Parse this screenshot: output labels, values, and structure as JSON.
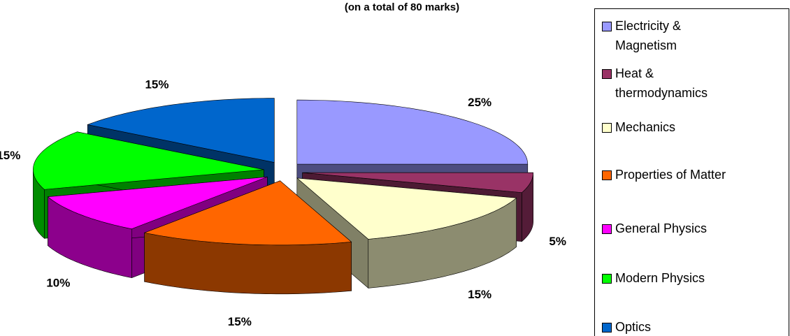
{
  "chart_data": {
    "type": "pie",
    "title": "(on a total of 80 marks)",
    "categories": [
      "Electricity & Magnetism",
      "Heat & thermodynamics",
      "Mechanics",
      "Properties of Matter",
      "General Physics",
      "Modern Physics",
      "Optics"
    ],
    "values": [
      25,
      5,
      15,
      15,
      10,
      15,
      15
    ],
    "value_labels": [
      "25%",
      "5%",
      "15%",
      "15%",
      "10%",
      "15%",
      "15%"
    ],
    "colors": [
      "#9999ff",
      "#993366",
      "#ffffcc",
      "#ff6600",
      "#ff00ff",
      "#00ff00",
      "#0066cc"
    ],
    "legend": "right"
  }
}
